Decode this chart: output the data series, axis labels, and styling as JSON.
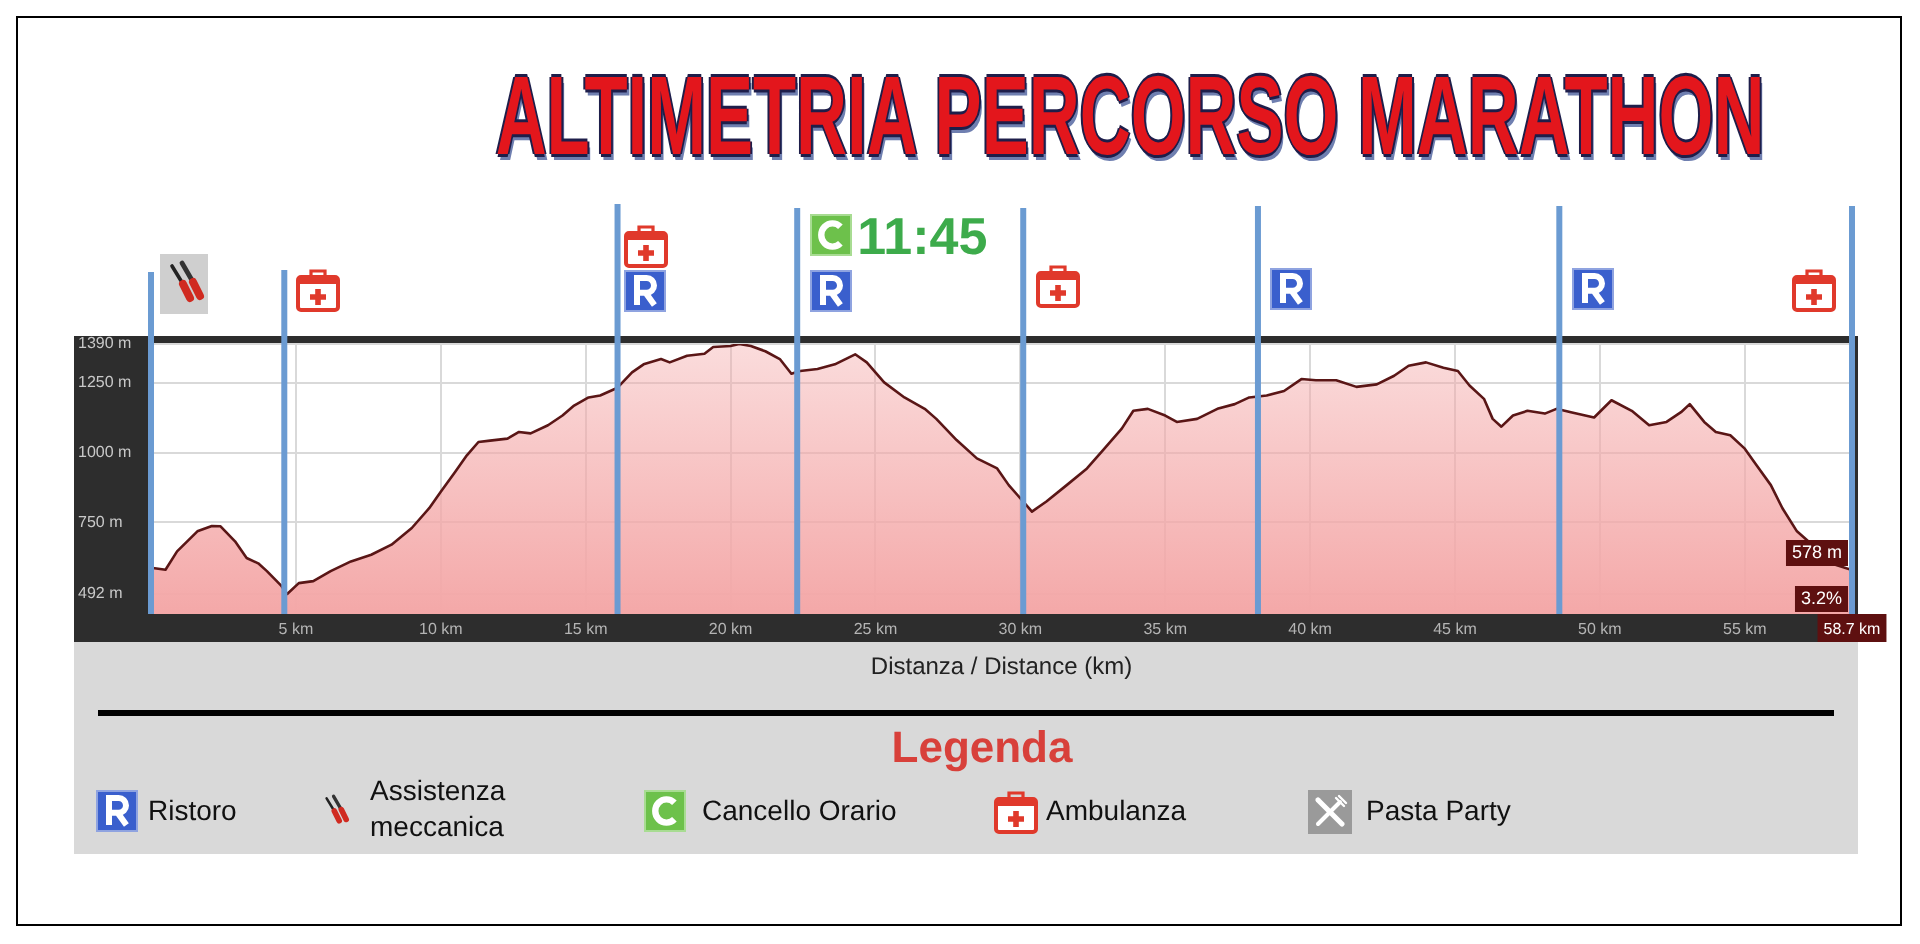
{
  "chart_data": {
    "type": "area",
    "title": "ALTIMETRIA PERCORSO MARATHON",
    "xlabel": "Distanza / Distance (km)",
    "legend_title": "Legenda",
    "x": [
      0,
      0.5,
      0.9,
      1.6,
      2.1,
      2.4,
      2.9,
      3.3,
      3.7,
      4.0,
      4.5,
      4.7,
      5.1,
      5.6,
      6.2,
      6.9,
      7.6,
      8.3,
      9.0,
      9.6,
      10.0,
      10.5,
      10.9,
      11.3,
      11.7,
      12.3,
      12.7,
      13.1,
      13.7,
      14.2,
      14.6,
      15.1,
      15.5,
      16.1,
      16.6,
      17.0,
      17.6,
      17.9,
      18.5,
      19.1,
      19.4,
      20.0,
      20.3,
      20.7,
      21.2,
      21.7,
      22.1,
      22.4,
      23.0,
      23.6,
      24.3,
      24.7,
      25.3,
      26.0,
      26.7,
      27.1,
      27.8,
      28.5,
      29.2,
      29.6,
      30.1,
      30.4,
      30.9,
      31.6,
      32.3,
      32.9,
      33.5,
      33.9,
      34.4,
      35.0,
      35.4,
      36.1,
      36.8,
      37.4,
      37.9,
      38.5,
      39.1,
      39.7,
      40.2,
      40.9,
      41.6,
      42.3,
      42.9,
      43.4,
      44.0,
      44.6,
      45.1,
      45.5,
      46.0,
      46.3,
      46.6,
      47.0,
      47.5,
      48.1,
      48.5,
      49.0,
      49.8,
      50.4,
      51.1,
      51.7,
      52.3,
      52.8,
      53.1,
      53.6,
      54.0,
      54.5,
      55.0,
      55.4,
      55.9,
      56.3,
      56.8,
      57.3,
      57.7,
      58.1,
      58.7
    ],
    "values": [
      586,
      579,
      645,
      717,
      736,
      735,
      681,
      621,
      602,
      574,
      521,
      492,
      531,
      538,
      574,
      609,
      633,
      669,
      729,
      800,
      859,
      931,
      990,
      1038,
      1043,
      1050,
      1074,
      1069,
      1098,
      1133,
      1169,
      1198,
      1205,
      1233,
      1288,
      1317,
      1336,
      1324,
      1348,
      1355,
      1379,
      1383,
      1390,
      1383,
      1364,
      1336,
      1283,
      1293,
      1300,
      1317,
      1353,
      1324,
      1252,
      1198,
      1157,
      1121,
      1045,
      979,
      943,
      883,
      824,
      788,
      824,
      883,
      943,
      1014,
      1086,
      1150,
      1157,
      1133,
      1110,
      1121,
      1157,
      1174,
      1198,
      1205,
      1221,
      1264,
      1260,
      1260,
      1236,
      1245,
      1276,
      1312,
      1324,
      1305,
      1293,
      1241,
      1193,
      1121,
      1093,
      1133,
      1150,
      1140,
      1157,
      1145,
      1126,
      1188,
      1150,
      1098,
      1110,
      1145,
      1174,
      1110,
      1074,
      1062,
      1014,
      955,
      883,
      800,
      717,
      null,
      null,
      598,
      578
    ],
    "value_labels": [
      null,
      null,
      null,
      null,
      null,
      null,
      null,
      null,
      null,
      null,
      null,
      null,
      null,
      null,
      null,
      null,
      null,
      null,
      null,
      null,
      null,
      null,
      null,
      null,
      null,
      null,
      null,
      null,
      null,
      null,
      null,
      null,
      null,
      null,
      null,
      null,
      null,
      null,
      null,
      null,
      null,
      null,
      null,
      null,
      null,
      null,
      null,
      null,
      null,
      null,
      null,
      null,
      null,
      null,
      null,
      null,
      null,
      null,
      null,
      null,
      null,
      null,
      null,
      null,
      null,
      null,
      null,
      null,
      null,
      null,
      null,
      null,
      null,
      null,
      null,
      null,
      null,
      null,
      null,
      null,
      null,
      null,
      null,
      null,
      null,
      null,
      null,
      null,
      null,
      null,
      null,
      null,
      null,
      null,
      null,
      null,
      null,
      null,
      null,
      null,
      null,
      null,
      null,
      null,
      null,
      null,
      null,
      null,
      null,
      null,
      null,
      null,
      null,
      null,
      "578 m"
    ],
    "color": "#f4a8a8",
    "marker": "none",
    "xlim": [
      0,
      58.7
    ],
    "ylim": [
      420,
      1390
    ],
    "xticks": [
      {
        "value": 5,
        "label": "5 km"
      },
      {
        "value": 10,
        "label": "10 km"
      },
      {
        "value": 15,
        "label": "15 km"
      },
      {
        "value": 20,
        "label": "20 km"
      },
      {
        "value": 25,
        "label": "25 km"
      },
      {
        "value": 30,
        "label": "30 km"
      },
      {
        "value": 35,
        "label": "35 km"
      },
      {
        "value": 40,
        "label": "40 km"
      },
      {
        "value": 45,
        "label": "45 km"
      },
      {
        "value": 50,
        "label": "50 km"
      },
      {
        "value": 55,
        "label": "55 km"
      },
      {
        "value": 58.7,
        "label": "58.7 km"
      }
    ],
    "yticks": [
      {
        "value": 492,
        "label": "492 m"
      },
      {
        "value": 750,
        "label": "750 m"
      },
      {
        "value": 1000,
        "label": "1000 m"
      },
      {
        "value": 1250,
        "label": "1250 m"
      },
      {
        "value": 1390,
        "label": "1390 m"
      }
    ],
    "grid": true,
    "ref_lines": [
      {
        "axis": "x",
        "value": 0,
        "color": "#6b9bd2"
      },
      {
        "axis": "x",
        "value": 4.6,
        "color": "#6b9bd2"
      },
      {
        "axis": "x",
        "value": 16.1,
        "color": "#6b9bd2"
      },
      {
        "axis": "x",
        "value": 22.3,
        "color": "#6b9bd2"
      },
      {
        "axis": "x",
        "value": 30.1,
        "color": "#6b9bd2"
      },
      {
        "axis": "x",
        "value": 38.2,
        "color": "#6b9bd2"
      },
      {
        "axis": "x",
        "value": 48.6,
        "color": "#6b9bd2"
      },
      {
        "axis": "x",
        "value": 58.7,
        "color": "#6b9bd2"
      }
    ],
    "annotations": [
      "Ristoro",
      "Assistenza meccanica",
      "Cancello Orario",
      "Ambulanza",
      "Pasta Party",
      {
        "text": "3.2%",
        "x": 58.7
      },
      {
        "text": "11:45",
        "x": 22.3
      }
    ]
  }
}
